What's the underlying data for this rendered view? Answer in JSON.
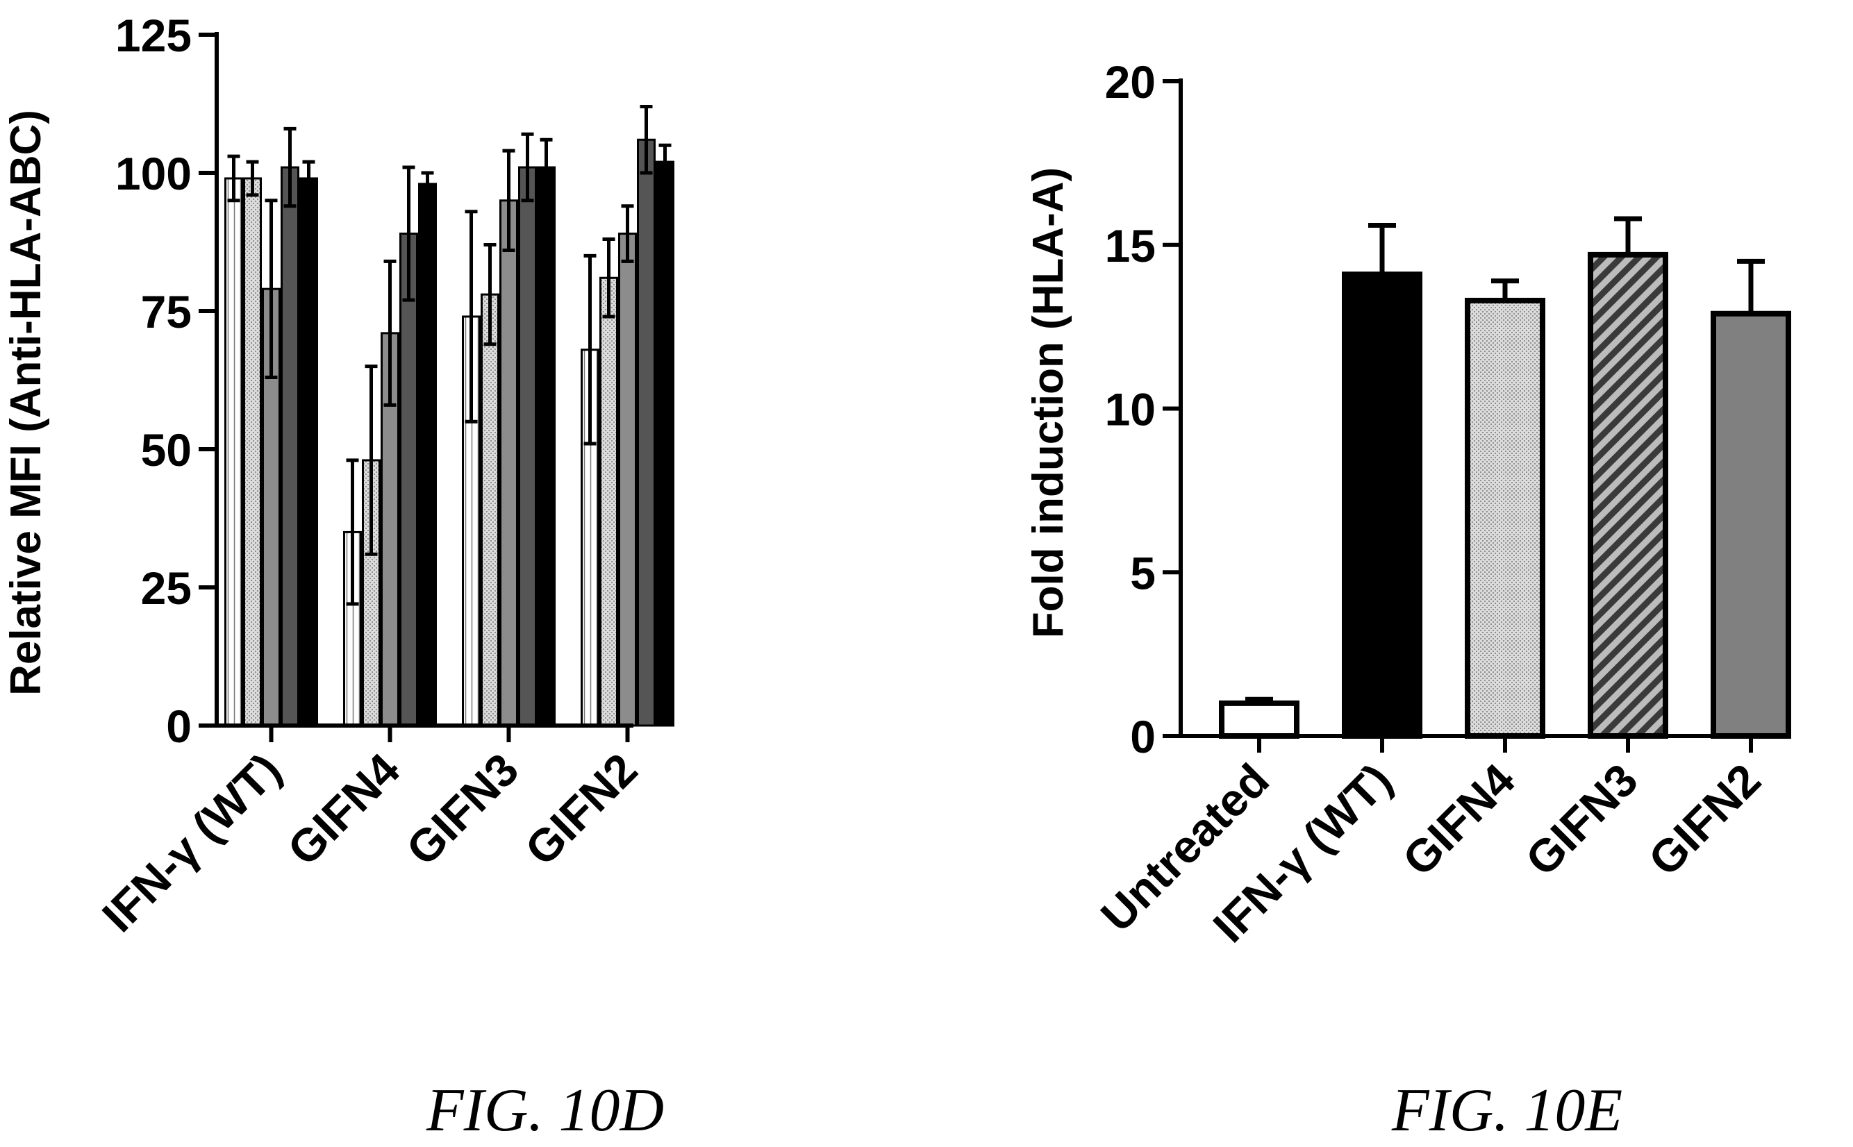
{
  "chart_data": [
    {
      "type": "bar",
      "grouped": true,
      "ylabel": "Relative MFI (Anti-HLA-ABC)",
      "xlabel": "",
      "ylim": [
        0,
        125
      ],
      "yticks": [
        "0",
        "25",
        "50",
        "75",
        "100",
        "125"
      ],
      "categories": [
        "IFN-γ (WT)",
        "GIFN4",
        "GIFN3",
        "GIFN2"
      ],
      "legend": "none",
      "grid": false,
      "caption": "FIG. 10D",
      "series": [
        {
          "values": [
            99,
            35,
            74,
            68
          ],
          "errors": [
            4,
            13,
            19,
            17
          ],
          "fill": "#ffffff",
          "pattern": "lines-vertical"
        },
        {
          "values": [
            99,
            48,
            78,
            81
          ],
          "errors": [
            3,
            17,
            9,
            7
          ],
          "fill": "#c8c8c8",
          "pattern": "dots"
        },
        {
          "values": [
            79,
            71,
            95,
            89
          ],
          "errors": [
            16,
            13,
            9,
            5
          ],
          "fill": "#8c8c8c",
          "pattern": "solid"
        },
        {
          "values": [
            101,
            89,
            101,
            106
          ],
          "errors": [
            7,
            12,
            6,
            6
          ],
          "fill": "#555555",
          "pattern": "solid"
        },
        {
          "values": [
            99,
            98,
            101,
            102
          ],
          "errors": [
            3,
            2,
            5,
            3
          ],
          "fill": "#000000",
          "pattern": "solid"
        }
      ]
    },
    {
      "type": "bar",
      "ylabel": "Fold induction (HLA-A)",
      "xlabel": "",
      "ylim": [
        0,
        20
      ],
      "yticks": [
        "0",
        "5",
        "10",
        "15",
        "20"
      ],
      "categories": [
        "Untreated",
        "IFN-γ (WT)",
        "GIFN4",
        "GIFN3",
        "GIFN2"
      ],
      "values": [
        1.0,
        14.1,
        13.3,
        14.7,
        12.9
      ],
      "errors": [
        0.12,
        1.5,
        0.6,
        1.1,
        1.6
      ],
      "fills": [
        "#ffffff",
        "#000000",
        "#e0e0e0",
        "#555555",
        "#808080"
      ],
      "patterns": [
        "solid",
        "solid",
        "dots",
        "hatch",
        "solid"
      ],
      "legend": "none",
      "grid": false,
      "caption": "FIG. 10E"
    }
  ]
}
